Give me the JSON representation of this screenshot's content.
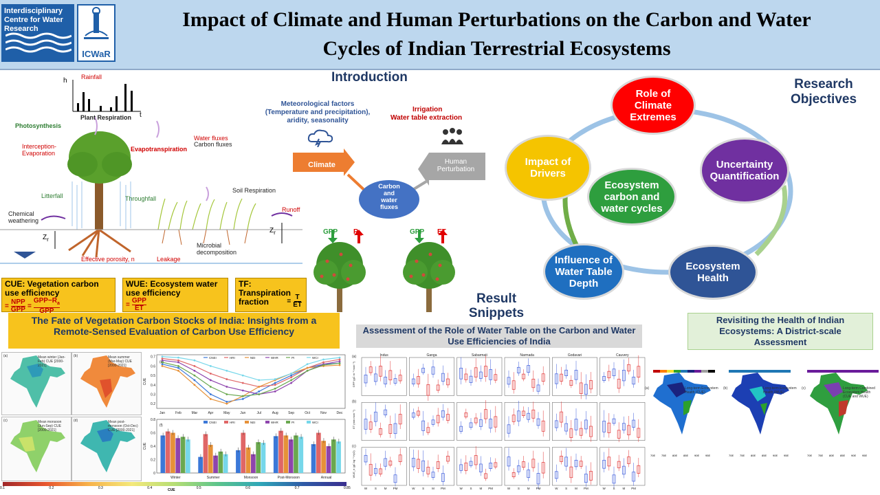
{
  "header": {
    "logo_left_text": "Interdisciplinary Centre for Water Research",
    "logo_right_text": "ICWaR",
    "title_line1": "Impact of Climate and Human Perturbations on the Carbon and Water",
    "title_line2": "Cycles of Indian Terrestrial Ecosystems"
  },
  "diagram": {
    "rainfall": "Rainfall",
    "h": "h",
    "t": "t",
    "plant_respiration": "Plant Respiration",
    "photosynthesis": "Photosynthesis",
    "interception": "Interception-\nEvaporation",
    "evapotranspiration": "Evapotranspiration",
    "water_fluxes": "Water fluxes",
    "carbon_fluxes": "Carbon fluxes",
    "litterfall": "Litterfall",
    "throughfall": "Throughfall",
    "soil_respiration": "Soil Respiration",
    "runoff": "Runoff",
    "chemical": "Chemical",
    "weathering": "weathering",
    "zr": "Z",
    "zr_sub": "r",
    "zr2": "Z",
    "zr2_sub": "r",
    "microbial": "Microbial",
    "decomposition": "decomposition",
    "porosity": "Effective porosity, n",
    "leakage": "Leakage"
  },
  "intro": {
    "heading": "Introduction",
    "met_factors": "Meteorological factors\n(Temperature and precipitation),\naridity, seasonality",
    "irrigation": "Irrigation",
    "water_table": "Water table extraction",
    "climate": "Climate",
    "human1": "Human",
    "human2": "Perturbation",
    "carbon_fluxes": "Carbon\nand\nwater\nfluxes"
  },
  "trees": {
    "gpp1": "GPP",
    "ra": "R",
    "ra_sub": "a",
    "gpp2": "GPP",
    "et": "ET"
  },
  "objectives": {
    "heading1": "Research",
    "heading2": "Objectives",
    "items": [
      {
        "label": "Role of Climate Extremes",
        "color": "#ff0000"
      },
      {
        "label": "Uncertainty Quantification",
        "color": "#7030a0"
      },
      {
        "label": "Ecosystem Health",
        "color": "#2f5496"
      },
      {
        "label": "Influence of Water Table Depth",
        "color": "#1f6fc0"
      },
      {
        "label": "Impact of Drivers",
        "color": "#f5c400"
      },
      {
        "label": "Ecosystem carbon and water cycles",
        "color": "#2e9e3e"
      }
    ]
  },
  "definitions": {
    "cue_title": "CUE: Vegetation carbon use efficiency",
    "cue_eq_lhs": "=",
    "cue_npp": "NPP",
    "cue_gpp": "GPP",
    "cue_num2": "GPP−R",
    "cue_num2_sub": "a",
    "cue_den2": "GPP",
    "wue_title": "WUE: Ecosystem water use efficiency",
    "wue_num": "GPP",
    "wue_den": "ET",
    "tf_title": "TF: Transpiration fraction",
    "tf_num": "T",
    "tf_den": "ET"
  },
  "results": {
    "heading1": "Result",
    "heading2": "Snippets",
    "box1": "The Fate of Vegetation Carbon Stocks of India: Insights from a Remote-Sensed Evaluation of Carbon Use Efficiency",
    "box2": "Assessment of the Role of Water Table on the Carbon and Water Use Efficiencies of India",
    "box3": "Revisiting the Health of Indian Ecosystems: A District-scale Assessment"
  },
  "cue_maps": [
    {
      "tag": "(a)",
      "label": "Mean winter (Jan-Feb) CUE [2000-2021]"
    },
    {
      "tag": "(b)",
      "label": "Mean summer (Mar-May) CUE [2000-2021]"
    },
    {
      "tag": "(c)",
      "label": "Mean monsoon (Jun-Sep) CUE [2000-2021]"
    },
    {
      "tag": "(d)",
      "label": "Mean post-monsoon (Oct-Dec) CUE [2000-2021]"
    }
  ],
  "colorbar": {
    "label": "CUE",
    "ticks": [
      "0.1",
      "0.2",
      "0.3",
      "0.4",
      "0.5",
      "0.6",
      "0.7",
      "0.85"
    ]
  },
  "cue_line_chart": {
    "tag": "(e)",
    "ylabel": "CUE",
    "months": [
      "Jan",
      "Feb",
      "Mar",
      "Apr",
      "May",
      "Jun",
      "Jul",
      "Aug",
      "Sep",
      "Oct",
      "Nov",
      "Dec"
    ],
    "yticks": [
      "0.7",
      "0.6",
      "0.5",
      "0.4",
      "0.3",
      "0.2"
    ],
    "legend": [
      "CNEI",
      "HRI",
      "NEI",
      "WHR",
      "PI",
      "WCI"
    ]
  },
  "cue_bar_chart": {
    "tag": "(f)",
    "ylabel": "CUE",
    "categories": [
      "Winter",
      "Summer",
      "Monsoon",
      "Post-Monsoon",
      "Annual"
    ],
    "yticks": [
      "0.8",
      "0.6",
      "0.4",
      "0.2",
      "0"
    ],
    "legend": [
      "CNEI",
      "HRI",
      "NEI",
      "WHR",
      "PI",
      "WCI"
    ]
  },
  "chart_data": [
    {
      "type": "line",
      "categories": [
        "Jan",
        "Feb",
        "Mar",
        "Apr",
        "May",
        "Jun",
        "Jul",
        "Aug",
        "Sep",
        "Oct",
        "Nov",
        "Dec"
      ],
      "ylim": [
        0.15,
        0.72
      ],
      "series": [
        {
          "name": "CNEI",
          "values": [
            0.62,
            0.58,
            0.45,
            0.3,
            0.22,
            0.25,
            0.33,
            0.42,
            0.5,
            0.58,
            0.62,
            0.63
          ],
          "color": "#3b78d8"
        },
        {
          "name": "HRI",
          "values": [
            0.68,
            0.66,
            0.6,
            0.52,
            0.46,
            0.42,
            0.38,
            0.4,
            0.48,
            0.58,
            0.64,
            0.67
          ],
          "color": "#e06666"
        },
        {
          "name": "NEI",
          "values": [
            0.6,
            0.55,
            0.4,
            0.25,
            0.2,
            0.28,
            0.38,
            0.45,
            0.52,
            0.58,
            0.6,
            0.61
          ],
          "color": "#e69138"
        },
        {
          "name": "WHR",
          "values": [
            0.66,
            0.64,
            0.55,
            0.45,
            0.38,
            0.34,
            0.3,
            0.33,
            0.42,
            0.55,
            0.62,
            0.65
          ],
          "color": "#8e44ad"
        },
        {
          "name": "PI",
          "values": [
            0.64,
            0.6,
            0.5,
            0.38,
            0.3,
            0.28,
            0.3,
            0.36,
            0.45,
            0.55,
            0.61,
            0.63
          ],
          "color": "#6aa84f"
        },
        {
          "name": "WCI",
          "values": [
            0.7,
            0.69,
            0.66,
            0.6,
            0.55,
            0.5,
            0.45,
            0.46,
            0.52,
            0.62,
            0.67,
            0.69
          ],
          "color": "#76d7ea"
        }
      ]
    },
    {
      "type": "bar",
      "categories": [
        "Winter",
        "Summer",
        "Monsoon",
        "Post-Monsoon",
        "Annual"
      ],
      "ylim": [
        0,
        0.8
      ],
      "series": [
        {
          "name": "CNEI",
          "values": [
            0.56,
            0.24,
            0.34,
            0.55,
            0.43
          ],
          "color": "#3b78d8"
        },
        {
          "name": "HRI",
          "values": [
            0.62,
            0.58,
            0.6,
            0.63,
            0.6
          ],
          "color": "#e06666"
        },
        {
          "name": "NEI",
          "values": [
            0.6,
            0.42,
            0.38,
            0.56,
            0.48
          ],
          "color": "#e69138"
        },
        {
          "name": "WHR",
          "values": [
            0.52,
            0.26,
            0.28,
            0.5,
            0.4
          ],
          "color": "#8e44ad"
        },
        {
          "name": "PI",
          "values": [
            0.54,
            0.32,
            0.46,
            0.56,
            0.5
          ],
          "color": "#6aa84f"
        },
        {
          "name": "WCI",
          "values": [
            0.5,
            0.28,
            0.45,
            0.54,
            0.47
          ],
          "color": "#76d7ea"
        }
      ]
    }
  ],
  "boxplot_grid": {
    "columns": [
      "Indus",
      "Ganga",
      "Sabarmati",
      "Narmada",
      "Godavari",
      "Cauvery"
    ],
    "row_labels": [
      "GPP (gC m⁻² mon⁻¹)",
      "ET (mm mon⁻¹)",
      "WUE_e (gC kg⁻¹ H₂O)"
    ],
    "row_tags": [
      "(a)",
      "(b)",
      "(c)"
    ],
    "seasons": [
      "W",
      "S",
      "M",
      "PM"
    ]
  },
  "health_maps": {
    "tags": [
      "(a)",
      "(b)",
      "(c)"
    ],
    "titles": [
      "Long-term Ecosystem Health (CUE)",
      "Long-term Ecosystem Health (WUE)",
      "Long-term Combined Ecosystem Health (CUE and WUE)"
    ],
    "lon_ticks": [
      "70E",
      "75E",
      "80E",
      "85E",
      "90E",
      "95E"
    ]
  }
}
